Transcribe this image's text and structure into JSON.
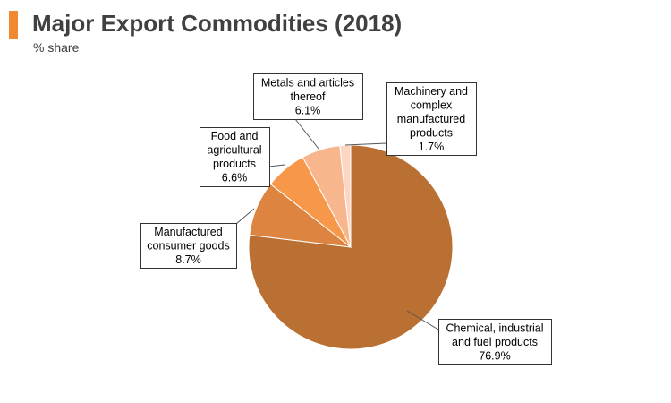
{
  "header": {
    "title": "Major Export Commodities (2018)",
    "subtitle": "% share",
    "accent_color": "#f0892f"
  },
  "chart_data": {
    "type": "pie",
    "title": "Major Export Commodities (2018)",
    "subtitle": "% share",
    "start_angle_deg": 0,
    "direction": "clockwise",
    "slices": [
      {
        "key": "chemical",
        "label_lines": [
          "Chemical, industrial",
          "and fuel products"
        ],
        "value": 76.9,
        "value_label": "76.9%",
        "color": "#bb7033"
      },
      {
        "key": "consumer",
        "label_lines": [
          "Manufactured",
          "consumer goods"
        ],
        "value": 8.7,
        "value_label": "8.7%",
        "color": "#dd8440"
      },
      {
        "key": "food",
        "label_lines": [
          "Food and",
          "agricultural",
          "products"
        ],
        "value": 6.6,
        "value_label": "6.6%",
        "color": "#f7974a"
      },
      {
        "key": "metals",
        "label_lines": [
          "Metals and articles",
          "thereof"
        ],
        "value": 6.1,
        "value_label": "6.1%",
        "color": "#f8b68d"
      },
      {
        "key": "machinery",
        "label_lines": [
          "Machinery and",
          "complex",
          "manufactured",
          "products"
        ],
        "value": 1.7,
        "value_label": "1.7%",
        "color": "#fcd5c3"
      }
    ]
  }
}
